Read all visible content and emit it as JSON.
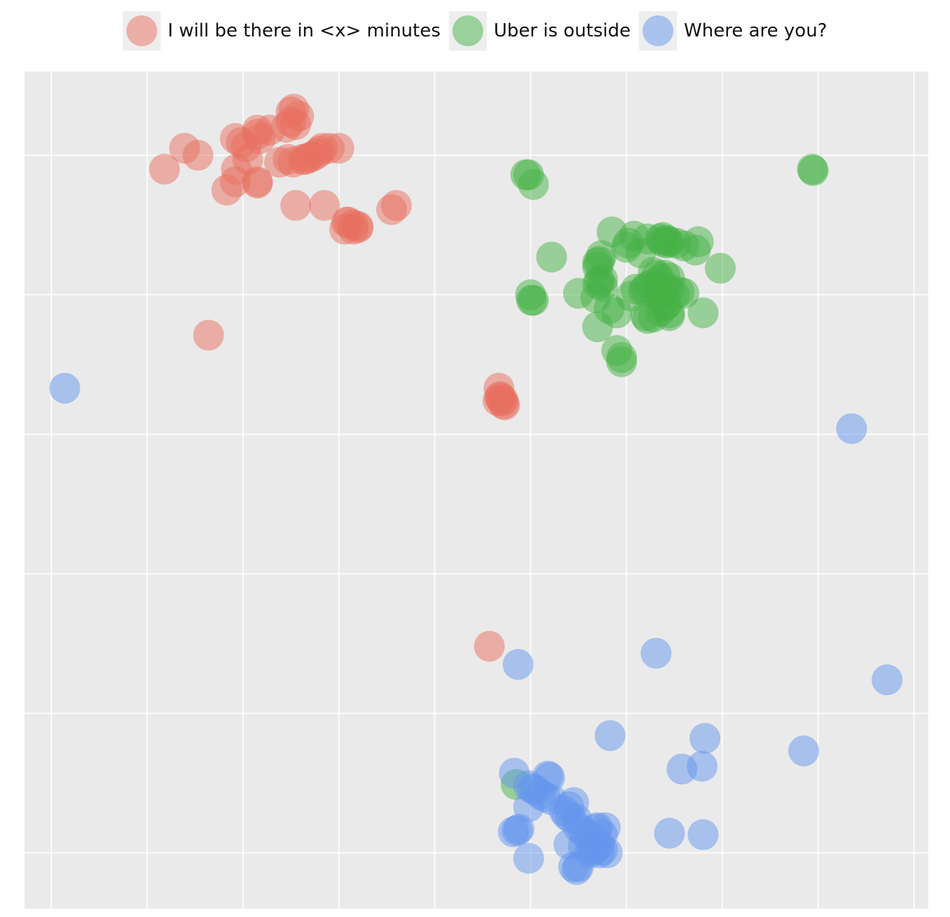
{
  "chart_data": {
    "type": "scatter",
    "title": "",
    "xlabel": "",
    "ylabel": "",
    "legend_position": "top-center",
    "grid": true,
    "axes_visible": false,
    "xlim": [
      -0.28,
      9.15
    ],
    "ylim": [
      -0.4,
      5.6
    ],
    "x_gridlines": [
      0,
      1,
      2,
      3,
      4,
      5,
      6,
      7,
      8,
      9
    ],
    "y_gridlines": [
      0,
      1,
      2,
      3,
      4,
      5
    ],
    "marker_opacity": 0.5,
    "series": [
      {
        "name": "I will be there in <x> minutes",
        "color": "#E8705F",
        "points": [
          [
            1.18,
            4.9
          ],
          [
            1.39,
            5.05
          ],
          [
            1.53,
            5.0
          ],
          [
            1.83,
            4.75
          ],
          [
            1.92,
            4.81
          ],
          [
            1.93,
            4.9
          ],
          [
            1.92,
            5.12
          ],
          [
            2.03,
            5.06
          ],
          [
            2.05,
            4.97
          ],
          [
            1.98,
            5.09
          ],
          [
            2.15,
            5.15
          ],
          [
            2.15,
            5.18
          ],
          [
            2.18,
            5.12
          ],
          [
            2.28,
            5.18
          ],
          [
            2.45,
            5.2
          ],
          [
            2.55,
            5.22
          ],
          [
            2.5,
            5.24
          ],
          [
            2.58,
            5.28
          ],
          [
            2.53,
            5.33
          ],
          [
            2.5,
            5.31
          ],
          [
            2.38,
            4.95
          ],
          [
            2.47,
            4.97
          ],
          [
            2.52,
            4.95
          ],
          [
            2.72,
            4.99
          ],
          [
            2.77,
            5.01
          ],
          [
            2.8,
            5.03
          ],
          [
            2.83,
            5.05
          ],
          [
            2.9,
            5.05
          ],
          [
            2.62,
            4.97
          ],
          [
            2.68,
            4.98
          ],
          [
            2.65,
            4.97
          ],
          [
            3.0,
            5.05
          ],
          [
            2.15,
            4.8
          ],
          [
            2.15,
            4.81
          ],
          [
            2.55,
            4.64
          ],
          [
            2.85,
            4.64
          ],
          [
            3.08,
            4.52
          ],
          [
            3.1,
            4.52
          ],
          [
            3.15,
            4.5
          ],
          [
            3.06,
            4.47
          ],
          [
            3.2,
            4.49
          ],
          [
            3.2,
            4.48
          ],
          [
            3.15,
            4.47
          ],
          [
            3.55,
            4.61
          ],
          [
            3.6,
            4.64
          ],
          [
            1.64,
            3.71
          ],
          [
            4.67,
            3.33
          ],
          [
            4.7,
            3.24
          ],
          [
            4.66,
            3.24
          ],
          [
            4.68,
            3.27
          ],
          [
            4.72,
            3.22
          ],
          [
            4.73,
            3.21
          ],
          [
            4.68,
            3.26
          ],
          [
            4.71,
            3.25
          ],
          [
            4.57,
            1.48
          ]
        ]
      },
      {
        "name": "Uber is outside",
        "color": "#45B245",
        "points": [
          [
            4.95,
            4.86
          ],
          [
            4.98,
            4.86
          ],
          [
            5.03,
            4.79
          ],
          [
            5.22,
            4.27
          ],
          [
            5.0,
            4.0
          ],
          [
            5.03,
            3.96
          ],
          [
            5.01,
            3.96
          ],
          [
            5.5,
            4.01
          ],
          [
            5.7,
            4.2
          ],
          [
            5.7,
            4.23
          ],
          [
            5.72,
            4.24
          ],
          [
            5.74,
            4.28
          ],
          [
            5.7,
            4.08
          ],
          [
            5.72,
            4.1
          ],
          [
            5.68,
            3.98
          ],
          [
            5.75,
            4.06
          ],
          [
            5.75,
            4.11
          ],
          [
            5.85,
            4.45
          ],
          [
            5.82,
            3.9
          ],
          [
            5.7,
            3.77
          ],
          [
            5.9,
            3.6
          ],
          [
            5.95,
            3.55
          ],
          [
            5.95,
            3.52
          ],
          [
            6.02,
            4.37
          ],
          [
            6.0,
            4.34
          ],
          [
            6.08,
            4.42
          ],
          [
            6.15,
            4.3
          ],
          [
            6.22,
            4.4
          ],
          [
            6.38,
            4.41
          ],
          [
            6.42,
            4.37
          ],
          [
            6.42,
            4.39
          ],
          [
            6.45,
            4.38
          ],
          [
            6.52,
            4.37
          ],
          [
            6.35,
            4.4
          ],
          [
            6.38,
            4.38
          ],
          [
            6.28,
            4.16
          ],
          [
            6.35,
            4.11
          ],
          [
            6.32,
            4.14
          ],
          [
            6.4,
            4.14
          ],
          [
            6.45,
            4.12
          ],
          [
            6.2,
            4.05
          ],
          [
            6.25,
            4.07
          ],
          [
            6.3,
            4.06
          ],
          [
            6.32,
            4.03
          ],
          [
            6.35,
            4.02
          ],
          [
            6.38,
            4.01
          ],
          [
            6.4,
            4.05
          ],
          [
            6.45,
            4.04
          ],
          [
            6.35,
            3.98
          ],
          [
            6.42,
            3.93
          ],
          [
            6.4,
            3.92
          ],
          [
            6.2,
            3.85
          ],
          [
            6.22,
            3.83
          ],
          [
            6.28,
            3.84
          ],
          [
            6.35,
            3.88
          ],
          [
            6.45,
            3.87
          ],
          [
            6.1,
            4.04
          ],
          [
            6.18,
            4.03
          ],
          [
            6.05,
            3.99
          ],
          [
            6.5,
            4.0
          ],
          [
            6.55,
            4.02
          ],
          [
            6.6,
            4.01
          ],
          [
            6.45,
            3.85
          ],
          [
            6.6,
            4.35
          ],
          [
            6.75,
            4.38
          ],
          [
            6.72,
            4.32
          ],
          [
            6.8,
            3.87
          ],
          [
            6.98,
            4.19
          ],
          [
            5.9,
            3.87
          ],
          [
            7.95,
            4.89
          ],
          [
            7.94,
            4.9
          ],
          [
            4.85,
            0.49
          ]
        ]
      },
      {
        "name": "Where are you?",
        "color": "#6495ED",
        "points": [
          [
            0.14,
            3.33
          ],
          [
            8.35,
            3.04
          ],
          [
            4.87,
            1.35
          ],
          [
            6.31,
            1.43
          ],
          [
            8.72,
            1.24
          ],
          [
            5.83,
            0.84
          ],
          [
            6.82,
            0.82
          ],
          [
            6.79,
            0.62
          ],
          [
            6.58,
            0.6
          ],
          [
            7.85,
            0.73
          ],
          [
            4.83,
            0.57
          ],
          [
            5.2,
            0.54
          ],
          [
            5.18,
            0.55
          ],
          [
            4.98,
            0.48
          ],
          [
            5.02,
            0.46
          ],
          [
            5.05,
            0.45
          ],
          [
            5.1,
            0.42
          ],
          [
            5.15,
            0.4
          ],
          [
            5.22,
            0.38
          ],
          [
            5.35,
            0.3
          ],
          [
            5.4,
            0.33
          ],
          [
            5.45,
            0.36
          ],
          [
            5.38,
            0.27
          ],
          [
            5.42,
            0.25
          ],
          [
            5.48,
            0.24
          ],
          [
            4.98,
            0.33
          ],
          [
            4.82,
            0.15
          ],
          [
            4.86,
            0.16
          ],
          [
            4.88,
            0.17
          ],
          [
            5.5,
            0.18
          ],
          [
            5.55,
            0.15
          ],
          [
            5.6,
            0.12
          ],
          [
            5.68,
            0.17
          ],
          [
            5.7,
            0.18
          ],
          [
            5.75,
            0.13
          ],
          [
            5.78,
            0.18
          ],
          [
            5.72,
            0.06
          ],
          [
            5.68,
            0.08
          ],
          [
            5.65,
            0.02
          ],
          [
            5.62,
            0.0
          ],
          [
            5.68,
            0.03
          ],
          [
            5.72,
            0.0
          ],
          [
            5.8,
            0.0
          ],
          [
            5.75,
            0.02
          ],
          [
            5.55,
            0.05
          ],
          [
            5.4,
            0.06
          ],
          [
            4.98,
            -0.04
          ],
          [
            5.45,
            -0.1
          ],
          [
            5.5,
            -0.1
          ],
          [
            5.48,
            -0.12
          ],
          [
            6.45,
            0.14
          ],
          [
            6.8,
            0.13
          ]
        ]
      }
    ]
  }
}
